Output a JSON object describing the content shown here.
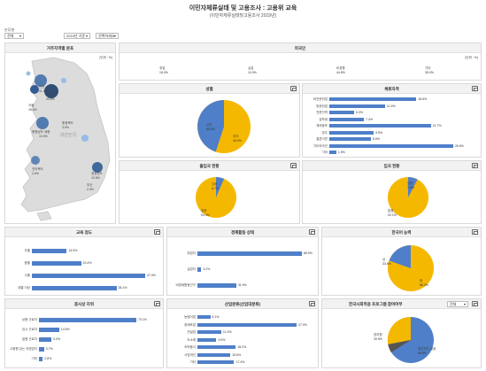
{
  "header": {
    "title": "이민자체류실태 및 고용조사 : 고용위 교육",
    "subtitle": "(이민자체류실태및고용조사 2019년)"
  },
  "filters": {
    "label": "분류별",
    "selected_a": "전체",
    "selected_b": "2019년 기준",
    "selected_c": "선택하세요"
  },
  "map_panel": {
    "title": "거주지역별 분포",
    "legend": "(단위 : %)",
    "country_label": "대한민국",
    "regions": [
      {
        "name": "서울",
        "value": "26.3%"
      },
      {
        "name": "경기",
        "value": "43.8%"
      },
      {
        "name": "인천",
        "value": "11.4%"
      },
      {
        "name": "충청북도",
        "value": "3.9%"
      },
      {
        "name": "충청남도·세종",
        "value": "10.5%"
      },
      {
        "name": "전라북도",
        "value": "2.6%"
      },
      {
        "name": "경상남도",
        "value": "10.8%"
      },
      {
        "name": "부산",
        "value": "2.5%"
      }
    ]
  },
  "stats_panel": {
    "title": "외국인",
    "unit": "(단위 : %)",
    "items": [
      {
        "label": "취업",
        "value": "15.0%"
      },
      {
        "label": "실업",
        "value": "10.0%"
      },
      {
        "label": "비경활",
        "value": "44.8%"
      },
      {
        "label": "기타",
        "value": "35.0%"
      }
    ]
  },
  "gender_panel": {
    "title": "성별",
    "legend_a": "남자",
    "value_a": "55.0%",
    "legend_b": "여자",
    "value_b": "45.0%"
  },
  "status_panel": {
    "title": "체류자격",
    "rows": [
      {
        "label": "비전문취업",
        "value": "18.6%"
      },
      {
        "label": "방문취업",
        "value": "11.9%"
      },
      {
        "label": "전문인력",
        "value": "5.3%"
      },
      {
        "label": "유학생",
        "value": "7.4%"
      },
      {
        "label": "재외동포",
        "value": "21.7%"
      },
      {
        "label": "영주",
        "value": "9.5%"
      },
      {
        "label": "결혼이민",
        "value": "8.9%"
      },
      {
        "label": "기타외국인",
        "value": "26.5%"
      },
      {
        "label": "기타",
        "value": "1.5%"
      }
    ]
  },
  "pie2_panel": {
    "title": "출입국 현황",
    "label_a": "없음",
    "value_a": "93.3%",
    "label_b": "있음",
    "value_b": "6.7%"
  },
  "pie3_panel": {
    "title": "입국 현황",
    "label_a": "없음",
    "value_a": "92.1%",
    "label_b": "있음",
    "value_b": "7.9%"
  },
  "edu_panel": {
    "title": "교육 정도",
    "rows": [
      {
        "label": "초졸",
        "value": "14.5%"
      },
      {
        "label": "중졸",
        "value": "20.4%"
      },
      {
        "label": "고졸",
        "value": "47.0%"
      },
      {
        "label": "대졸 이상",
        "value": "35.1%"
      }
    ]
  },
  "econ_panel": {
    "title": "경제활동 상태",
    "rows": [
      {
        "label": "취업자",
        "value": "85.9%"
      },
      {
        "label": "실업자",
        "value": "3.2%"
      },
      {
        "label": "비경제활동인구",
        "value": "31.9%"
      }
    ]
  },
  "korean_panel": {
    "title": "한국어 능력",
    "label_a": "상",
    "value_a": "33.8%",
    "label_b": "중",
    "value_b": "66.2%"
  },
  "job_panel": {
    "title": "종사상 지위",
    "rows": [
      {
        "label": "상용 근로자",
        "value": "70.1%"
      },
      {
        "label": "임시 근로자",
        "value": "14.5%"
      },
      {
        "label": "일용 근로자",
        "value": "9.0%"
      },
      {
        "label": "고용원 있는 자영업자",
        "value": "3.7%"
      },
      {
        "label": "기타",
        "value": "2.8%"
      }
    ]
  },
  "industry_panel": {
    "title": "산업분류(산업대분류)",
    "rows": [
      {
        "label": "농림어업",
        "value": "6.1%"
      },
      {
        "label": "광제조업",
        "value": "47.0%"
      },
      {
        "label": "건설업",
        "value": "11.3%"
      },
      {
        "label": "도소매",
        "value": "9.0%"
      },
      {
        "label": "숙박음식",
        "value": "18.2%"
      },
      {
        "label": "사업개인",
        "value": "15.6%"
      },
      {
        "label": "기타",
        "value": "17.4%"
      }
    ]
  },
  "training_panel": {
    "title": "한국사회적응 프로그램 참여여부",
    "select": "전체",
    "label_a": "참여하지 않음",
    "value_a": "69.5%",
    "label_b": "참여함",
    "value_b": "30.5%"
  },
  "colors": {
    "primary": "#4f7fc9",
    "secondary": "#f5b800",
    "header_bg": "#f2f2f2"
  },
  "icons": [
    "chart-icon",
    "dropdown-icon"
  ]
}
